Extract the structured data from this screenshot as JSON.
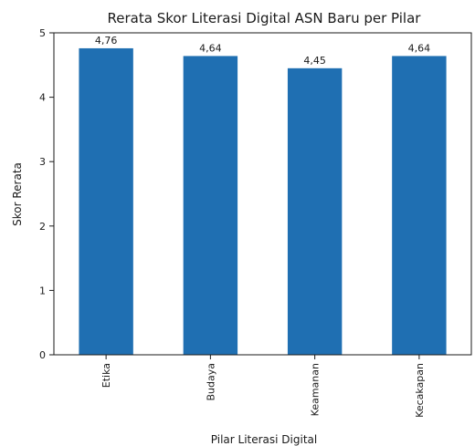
{
  "chart_data": {
    "type": "bar",
    "title": "Rerata Skor Literasi Digital ASN Baru per Pilar",
    "xlabel": "Pilar Literasi Digital",
    "ylabel": "Skor Rerata",
    "categories": [
      "Etika",
      "Budaya",
      "Keamanan",
      "Kecakapan"
    ],
    "values": [
      4.76,
      4.64,
      4.45,
      4.64
    ],
    "data_labels": [
      "4,76",
      "4,64",
      "4,45",
      "4,64"
    ],
    "ylim": [
      0,
      5
    ],
    "yticks": [
      "0",
      "1",
      "2",
      "3",
      "4",
      "5"
    ],
    "grid": false,
    "legend": "none",
    "bar_color": "#1f6fb2"
  }
}
